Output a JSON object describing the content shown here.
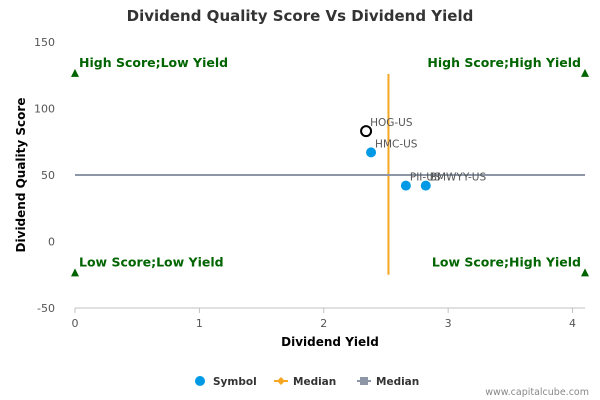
{
  "chart_data": {
    "type": "scatter",
    "title": "Dividend Quality Score Vs Dividend Yield",
    "xlabel": "Dividend Yield",
    "ylabel": "Dividend Quality Score",
    "xlim": [
      0,
      4.1
    ],
    "ylim": [
      -50,
      150
    ],
    "xticks": [
      0,
      1,
      2,
      3,
      4
    ],
    "yticks": [
      -50,
      0,
      50,
      100,
      150
    ],
    "grid": false,
    "series": [
      {
        "name": "Symbol",
        "color": "#0099e6",
        "points": [
          {
            "label": "HOG-US",
            "x": 2.34,
            "y": 83,
            "highlight": true
          },
          {
            "label": "HMC-US",
            "x": 2.38,
            "y": 67,
            "highlight": false
          },
          {
            "label": "PII-US",
            "x": 2.66,
            "y": 42,
            "highlight": false
          },
          {
            "label": "BMWYY-US",
            "x": 2.82,
            "y": 42,
            "highlight": false
          }
        ]
      },
      {
        "name": "Median",
        "color": "#f5a623",
        "orientation": "vertical",
        "x": 2.52,
        "y_range": [
          -25,
          126
        ]
      },
      {
        "name": "Median",
        "color": "#8c96a6",
        "orientation": "horizontal",
        "y": 50,
        "x_range": [
          0,
          4.1
        ]
      }
    ],
    "quadrants": [
      {
        "label": "High Score;Low Yield",
        "x": 0,
        "y": 126,
        "anchor": "left"
      },
      {
        "label": "High Score;High Yield",
        "x": 4.1,
        "y": 126,
        "anchor": "right"
      },
      {
        "label": "Low Score;Low Yield",
        "x": 0,
        "y": -24,
        "anchor": "left"
      },
      {
        "label": "Low Score;High Yield",
        "x": 4.1,
        "y": -24,
        "anchor": "right"
      }
    ],
    "quadrant_color": "#006400",
    "legend": {
      "placement": "bottom",
      "items": [
        {
          "label": "Symbol",
          "marker": "circle",
          "color": "#0099e6"
        },
        {
          "label": "Median",
          "marker": "diamond-line",
          "color": "#f5a623"
        },
        {
          "label": "Median",
          "marker": "square-line",
          "color": "#8c96a6"
        }
      ]
    }
  },
  "credit": "www.capitalcube.com"
}
